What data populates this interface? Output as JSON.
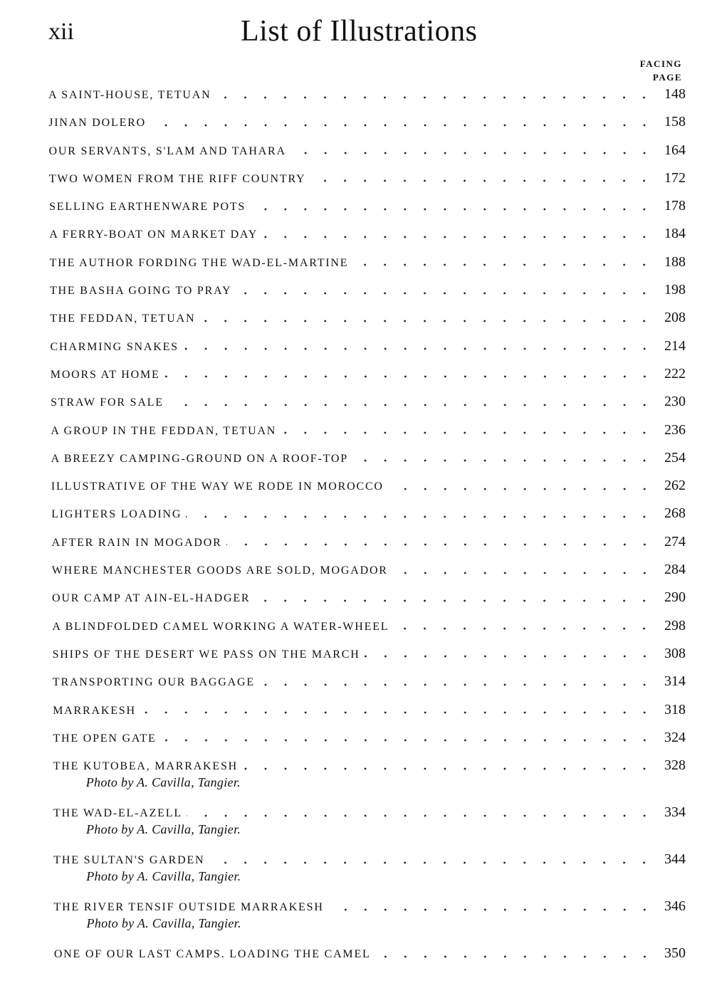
{
  "header": {
    "page_number": "xii",
    "title": "List of Illustrations",
    "column_label_1": "FACING",
    "column_label_2": "PAGE"
  },
  "entries": [
    {
      "label": "A SAINT-HOUSE, TETUAN",
      "page": "148"
    },
    {
      "label": "JINAN DOLERO",
      "page": "158"
    },
    {
      "label": "OUR SERVANTS, S'LAM AND TAHARA",
      "page": "164"
    },
    {
      "label": "TWO WOMEN FROM THE RIFF COUNTRY",
      "page": "172"
    },
    {
      "label": "SELLING EARTHENWARE POTS",
      "page": "178"
    },
    {
      "label": "A FERRY-BOAT ON MARKET DAY",
      "page": "184"
    },
    {
      "label": "THE AUTHOR FORDING THE WAD-EL-MARTINE",
      "page": "188"
    },
    {
      "label": "THE BASHA GOING TO PRAY",
      "page": "198"
    },
    {
      "label": "THE FEDDAN, TETUAN",
      "page": "208"
    },
    {
      "label": "CHARMING SNAKES",
      "page": "214"
    },
    {
      "label": "MOORS AT HOME",
      "page": "222"
    },
    {
      "label": "STRAW FOR SALE",
      "page": "230"
    },
    {
      "label": "A GROUP IN THE FEDDAN, TETUAN",
      "page": "236"
    },
    {
      "label": "A BREEZY CAMPING-GROUND ON A ROOF-TOP",
      "page": "254"
    },
    {
      "label": "ILLUSTRATIVE OF THE WAY WE RODE IN MOROCCO",
      "page": "262"
    },
    {
      "label": "LIGHTERS LOADING",
      "page": "268"
    },
    {
      "label": "AFTER RAIN IN MOGADOR",
      "page": "274"
    },
    {
      "label": "WHERE MANCHESTER GOODS ARE SOLD, MOGADOR",
      "page": "284"
    },
    {
      "label": "OUR CAMP AT AIN-EL-HADGER",
      "page": "290"
    },
    {
      "label": "A BLINDFOLDED CAMEL WORKING A WATER-WHEEL",
      "page": "298"
    },
    {
      "label": "SHIPS OF THE DESERT WE PASS ON THE MARCH",
      "page": "308"
    },
    {
      "label": "TRANSPORTING OUR BAGGAGE",
      "page": "314"
    },
    {
      "label": "MARRAKESH",
      "page": "318"
    },
    {
      "label": "THE OPEN GATE",
      "page": "324"
    },
    {
      "label": "THE KUTOBEA, MARRAKESH",
      "page": "328",
      "credit": "Photo by A. Cavilla, Tangier."
    },
    {
      "label": "THE WAD-EL-AZELL",
      "page": "334",
      "credit": "Photo by A. Cavilla, Tangier."
    },
    {
      "label": "THE SULTAN'S GARDEN",
      "page": "344",
      "credit": "Photo by A. Cavilla, Tangier."
    },
    {
      "label": "THE RIVER TENSIF OUTSIDE MARRAKESH",
      "page": "346",
      "credit": "Photo by A. Cavilla, Tangier."
    },
    {
      "label": "ONE OF OUR LAST CAMPS.  LOADING THE CAMEL",
      "page": "350"
    }
  ]
}
